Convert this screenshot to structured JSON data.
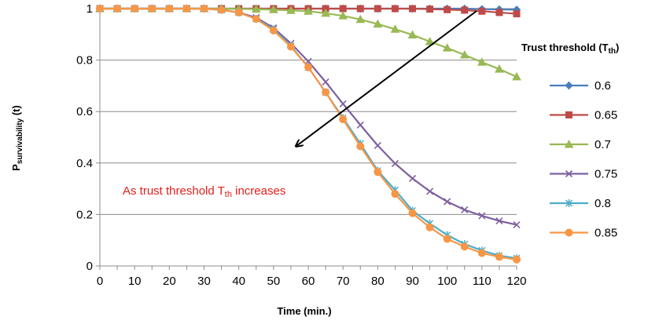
{
  "chart_data": {
    "type": "line",
    "xlabel": "Time (min.)",
    "ylabel": {
      "main": "P",
      "sub": "survivability",
      "suffix": " (t)"
    },
    "xlim": [
      0,
      120
    ],
    "ylim": [
      0,
      1
    ],
    "x_ticks": [
      0,
      10,
      20,
      30,
      40,
      50,
      60,
      70,
      80,
      90,
      100,
      110,
      120
    ],
    "y_ticks": [
      0,
      0.2,
      0.4,
      0.6,
      0.8,
      1
    ],
    "y_tick_labels": [
      "0",
      "0.2",
      "0.4",
      "0.6",
      "0.8",
      "1"
    ],
    "grid": "horizontal",
    "legend": {
      "position": "right",
      "title": {
        "main": "Trust threshold (T",
        "sub": "th",
        "suffix": ")"
      }
    },
    "x": [
      0,
      5,
      10,
      15,
      20,
      25,
      30,
      35,
      40,
      45,
      50,
      55,
      60,
      65,
      70,
      75,
      80,
      85,
      90,
      95,
      100,
      105,
      110,
      115,
      120
    ],
    "series": [
      {
        "name": "0.6",
        "color": "#4A7EBB",
        "marker": "diamond",
        "values": [
          1,
          1,
          1,
          1,
          1,
          1,
          1,
          1,
          1,
          1,
          1,
          1,
          1,
          1,
          1,
          1,
          1,
          1,
          1,
          1,
          1,
          1,
          0.998,
          0.997,
          0.996
        ]
      },
      {
        "name": "0.65",
        "color": "#BE4B48",
        "marker": "square",
        "values": [
          1,
          1,
          1,
          1,
          1,
          1,
          1,
          1,
          1,
          1,
          1,
          1,
          1,
          1,
          1,
          1,
          1,
          1,
          1,
          0.998,
          0.996,
          0.994,
          0.99,
          0.985,
          0.98
        ]
      },
      {
        "name": "0.7",
        "color": "#98B954",
        "marker": "triangle",
        "values": [
          1,
          1,
          1,
          1,
          1,
          1,
          1,
          1,
          0.999,
          0.998,
          0.996,
          0.993,
          0.99,
          0.982,
          0.972,
          0.958,
          0.94,
          0.92,
          0.898,
          0.872,
          0.847,
          0.82,
          0.792,
          0.765,
          0.735
        ]
      },
      {
        "name": "0.75",
        "color": "#7D60A0",
        "marker": "x",
        "values": [
          1,
          1,
          1,
          1,
          1,
          1,
          1,
          0.995,
          0.985,
          0.965,
          0.925,
          0.865,
          0.795,
          0.715,
          0.63,
          0.548,
          0.468,
          0.398,
          0.34,
          0.29,
          0.25,
          0.218,
          0.195,
          0.175,
          0.16
        ]
      },
      {
        "name": "0.8",
        "color": "#4BACC6",
        "marker": "asterisk",
        "values": [
          1,
          1,
          1,
          1,
          1,
          1,
          1,
          0.995,
          0.985,
          0.96,
          0.92,
          0.855,
          0.772,
          0.675,
          0.575,
          0.475,
          0.37,
          0.295,
          0.215,
          0.165,
          0.12,
          0.085,
          0.06,
          0.04,
          0.03
        ]
      },
      {
        "name": "0.85",
        "color": "#F79646",
        "marker": "circle",
        "values": [
          1,
          1,
          1,
          1,
          1,
          1,
          1,
          0.995,
          0.985,
          0.96,
          0.915,
          0.852,
          0.772,
          0.675,
          0.57,
          0.465,
          0.365,
          0.28,
          0.205,
          0.15,
          0.105,
          0.075,
          0.05,
          0.035,
          0.025
        ]
      }
    ],
    "annotation": {
      "text_before": "As  trust threshold T",
      "sub": "th",
      "text_after": " increases",
      "color": "#E0201B"
    },
    "arrow_color": "#000000"
  }
}
